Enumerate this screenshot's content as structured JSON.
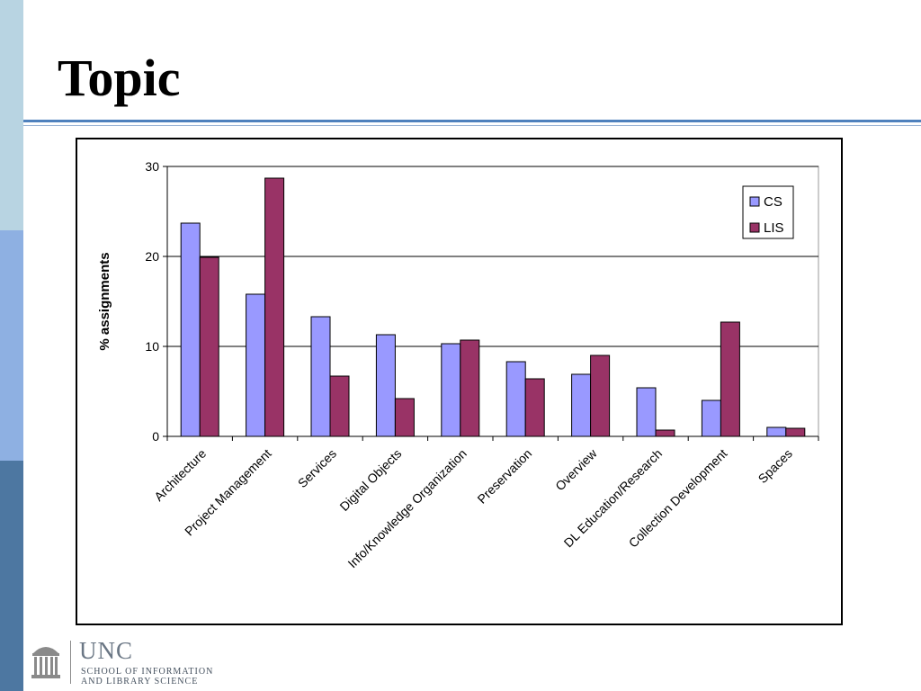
{
  "slide": {
    "title": "Topic",
    "colors": {
      "sidebar_top": "#b8d4e2",
      "sidebar_mid": "#8eb0e2",
      "sidebar_bottom": "#4d77a1",
      "rule": "#4f81bd"
    }
  },
  "logo": {
    "icon": "old-well-icon",
    "name": "UNC",
    "line1": "SCHOOL OF INFORMATION",
    "line2": "AND LIBRARY SCIENCE"
  },
  "chart_data": {
    "type": "bar",
    "title": "",
    "xlabel": "",
    "ylabel": "% assignments",
    "ylim": [
      0,
      30
    ],
    "yticks": [
      0,
      10,
      20,
      30
    ],
    "grid": true,
    "legend_position": "top-right",
    "categories": [
      "Architecture",
      "Project Management",
      "Services",
      "Digital Objects",
      "Info/Knowledge Organization",
      "Preservation",
      "Overview",
      "DL Education/Research",
      "Collection Development",
      "Spaces"
    ],
    "series": [
      {
        "name": "CS",
        "color": "#9999ff",
        "values": [
          23.7,
          15.8,
          13.3,
          11.3,
          10.3,
          8.3,
          6.9,
          5.4,
          4.0,
          1.0
        ]
      },
      {
        "name": "LIS",
        "color": "#993366",
        "values": [
          19.9,
          28.7,
          6.7,
          4.2,
          10.7,
          6.4,
          9.0,
          0.7,
          12.7,
          0.9
        ]
      }
    ]
  }
}
